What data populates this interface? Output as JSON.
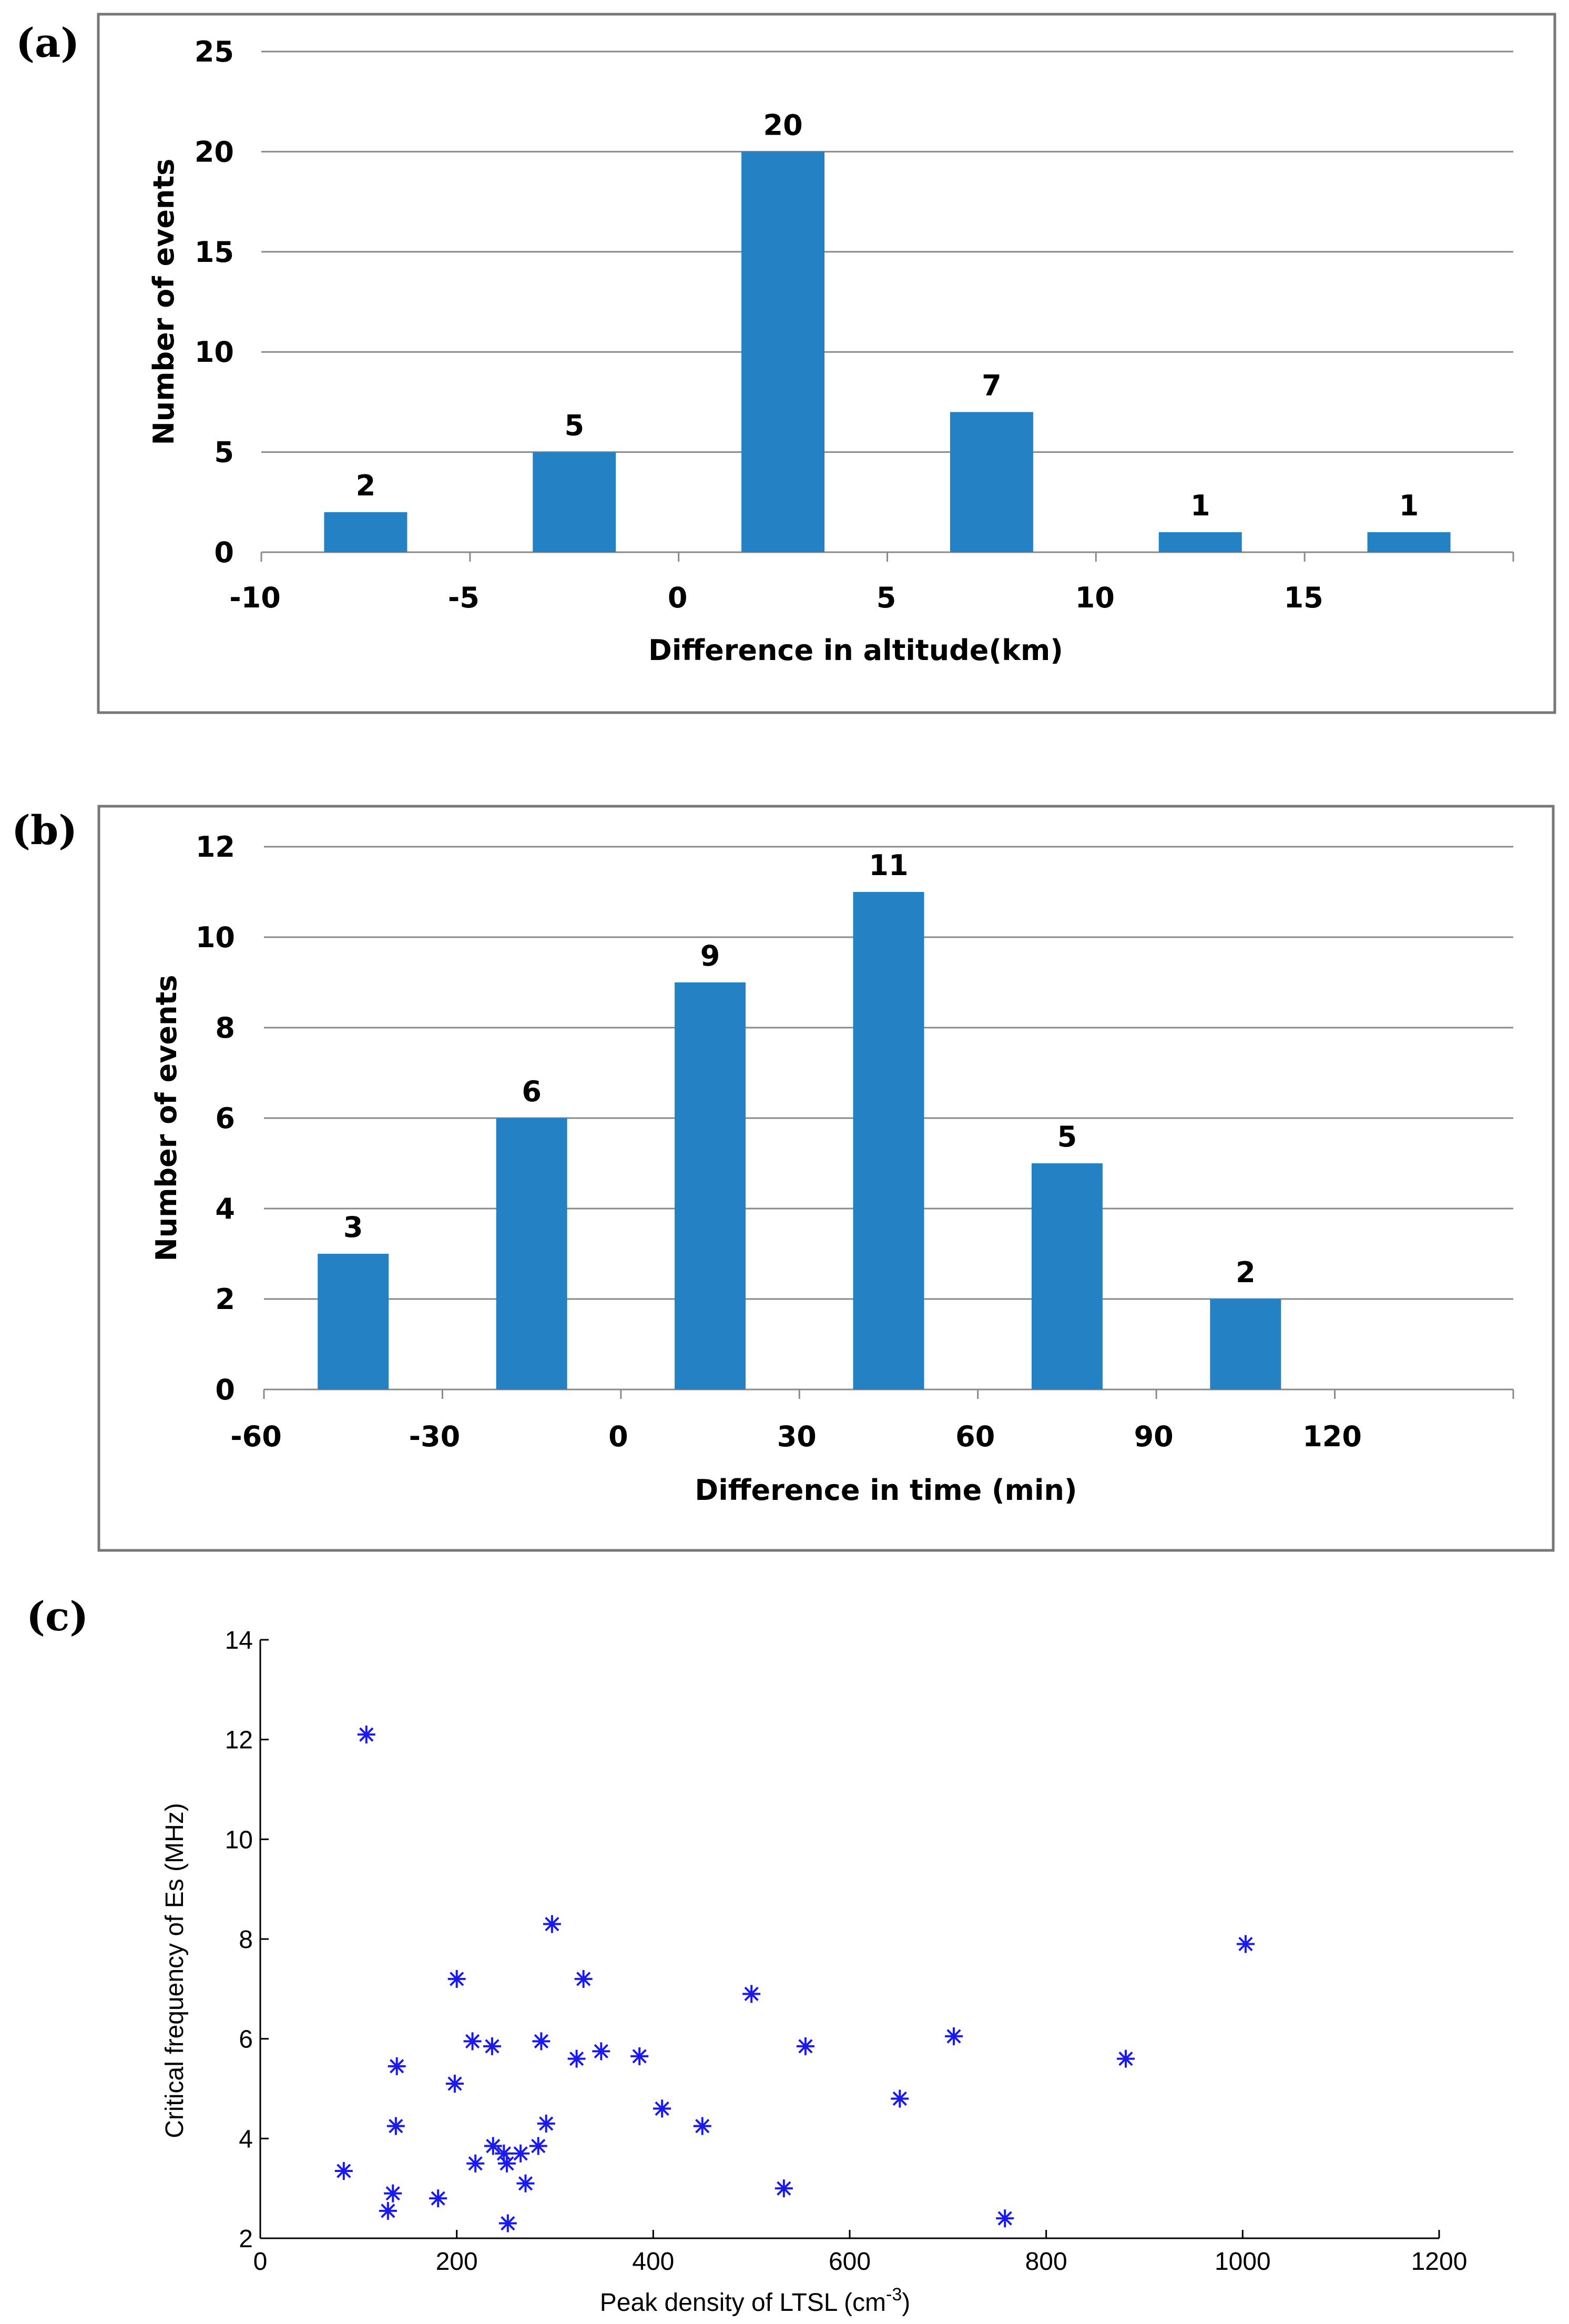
{
  "panels": {
    "a": "(a)",
    "b": "(b)",
    "c": "(c)"
  },
  "colors": {
    "bar": "#2381c4",
    "marker": "#1a1af0"
  },
  "chart_data": [
    {
      "id": "a",
      "type": "bar",
      "title": "",
      "xlabel": "Difference in altitude(km)",
      "ylabel": "Number of events",
      "ylim": [
        0,
        25
      ],
      "yticks": [
        0,
        5,
        10,
        15,
        20,
        25
      ],
      "xtick_labels": [
        "-10",
        "-5",
        "0",
        "5",
        "10",
        "15"
      ],
      "categories": [
        "-10 to -5",
        "-5 to 0",
        "0 to 5",
        "5 to 10",
        "10 to 15",
        "15 to 20"
      ],
      "values": [
        2,
        5,
        20,
        7,
        1,
        1
      ],
      "data_labels": [
        "2",
        "5",
        "20",
        "7",
        "1",
        "1"
      ],
      "grid": true
    },
    {
      "id": "b",
      "type": "bar",
      "title": "",
      "xlabel": "Difference in time (min)",
      "ylabel": "Number of events",
      "ylim": [
        0,
        12
      ],
      "yticks": [
        0,
        2,
        4,
        6,
        8,
        10,
        12
      ],
      "xtick_labels": [
        "-60",
        "-30",
        "0",
        "30",
        "60",
        "90",
        "120"
      ],
      "categories": [
        "-60 to -30",
        "-30 to 0",
        "0 to 30",
        "30 to 60",
        "60 to 90",
        "90 to 120",
        "120 to 150"
      ],
      "values": [
        3,
        6,
        9,
        11,
        5,
        2,
        0
      ],
      "data_labels": [
        "3",
        "6",
        "9",
        "11",
        "5",
        "2",
        ""
      ],
      "grid": true
    },
    {
      "id": "c",
      "type": "scatter",
      "title": "",
      "xlabel": "Peak density of LTSL (cm",
      "xlabel_sup": "-3",
      "xlabel_end": ")",
      "ylabel": "Critical frequency of Es (MHz)",
      "xlim": [
        0,
        1200
      ],
      "ylim": [
        2,
        14
      ],
      "xticks": [
        0,
        200,
        400,
        600,
        800,
        1000,
        1200
      ],
      "yticks": [
        2,
        4,
        6,
        8,
        10,
        12,
        14
      ],
      "marker": "asterisk",
      "grid": false,
      "points": [
        {
          "x": 108,
          "y": 12.1
        },
        {
          "x": 297,
          "y": 8.3
        },
        {
          "x": 1003,
          "y": 7.9
        },
        {
          "x": 200,
          "y": 7.2
        },
        {
          "x": 329,
          "y": 7.2
        },
        {
          "x": 500,
          "y": 6.9
        },
        {
          "x": 706,
          "y": 6.05
        },
        {
          "x": 216,
          "y": 5.95
        },
        {
          "x": 236,
          "y": 5.85
        },
        {
          "x": 286,
          "y": 5.95
        },
        {
          "x": 555,
          "y": 5.85
        },
        {
          "x": 347,
          "y": 5.75
        },
        {
          "x": 386,
          "y": 5.65
        },
        {
          "x": 322,
          "y": 5.6
        },
        {
          "x": 881,
          "y": 5.6
        },
        {
          "x": 139,
          "y": 5.45
        },
        {
          "x": 198,
          "y": 5.1
        },
        {
          "x": 651,
          "y": 4.8
        },
        {
          "x": 409,
          "y": 4.6
        },
        {
          "x": 291,
          "y": 4.3
        },
        {
          "x": 450,
          "y": 4.25
        },
        {
          "x": 138,
          "y": 4.25
        },
        {
          "x": 237,
          "y": 3.85
        },
        {
          "x": 283,
          "y": 3.85
        },
        {
          "x": 248,
          "y": 3.7
        },
        {
          "x": 265,
          "y": 3.7
        },
        {
          "x": 219,
          "y": 3.5
        },
        {
          "x": 251,
          "y": 3.5
        },
        {
          "x": 85,
          "y": 3.35
        },
        {
          "x": 270,
          "y": 3.1
        },
        {
          "x": 533,
          "y": 3.0
        },
        {
          "x": 135,
          "y": 2.9
        },
        {
          "x": 181,
          "y": 2.8
        },
        {
          "x": 130,
          "y": 2.55
        },
        {
          "x": 758,
          "y": 2.4
        },
        {
          "x": 252,
          "y": 2.3
        }
      ]
    }
  ]
}
